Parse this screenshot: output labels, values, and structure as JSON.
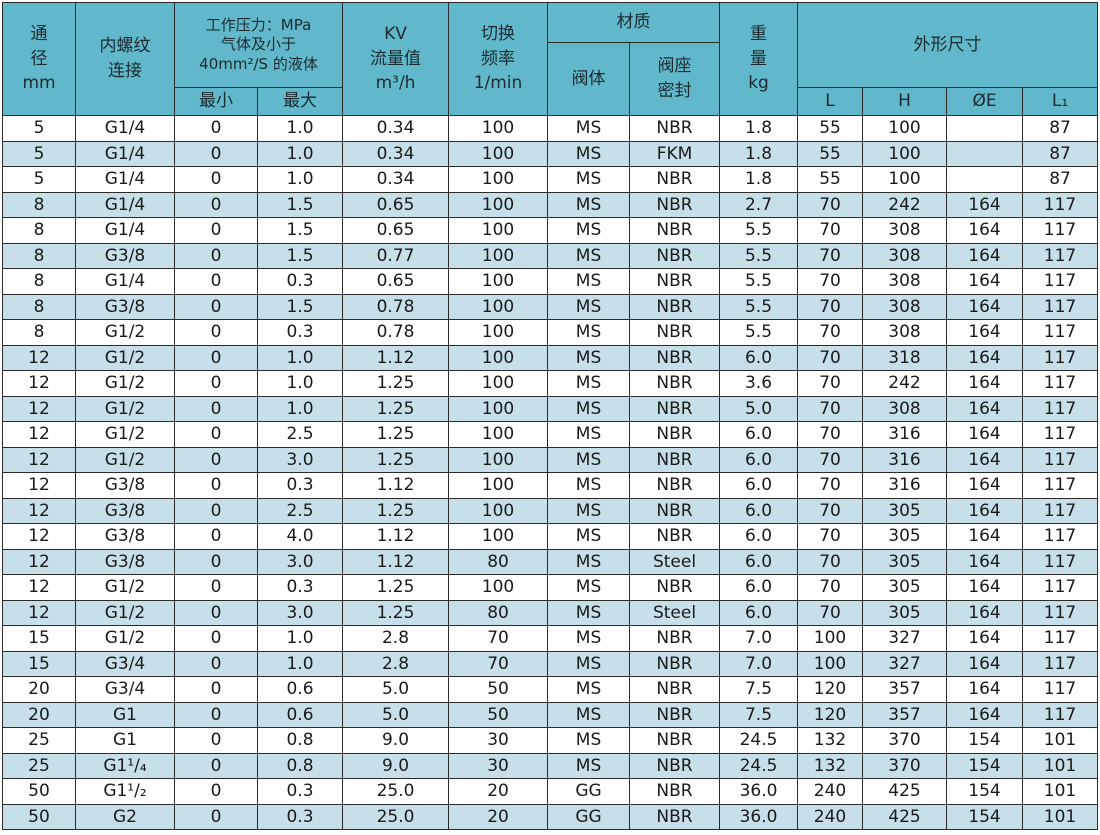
{
  "header": {
    "diameter": [
      "通",
      "径",
      "mm"
    ],
    "thread": [
      "内螺纹",
      "连接"
    ],
    "pressure": [
      "工作压力：MPa",
      "气体及小于",
      "40mm²/S 的液体"
    ],
    "pressure_min": "最小",
    "pressure_max": "最大",
    "kv": [
      "KV",
      "流量值",
      "m³/h"
    ],
    "frequency": [
      "切换",
      "频率",
      "1/min"
    ],
    "material": "材质",
    "body": "阀体",
    "seal": [
      "阀座",
      "密封"
    ],
    "weight": [
      "重",
      "量",
      "kg"
    ],
    "dimensions": "外形尺寸",
    "dim_L": "L",
    "dim_H": "H",
    "dim_E": "ØE",
    "dim_L1": "L₁"
  },
  "rows": [
    [
      "5",
      "G1/4",
      "0",
      "1.0",
      "0.34",
      "100",
      "MS",
      "NBR",
      "1.8",
      "55",
      "100",
      null,
      "87"
    ],
    [
      "5",
      "G1/4",
      "0",
      "1.0",
      "0.34",
      "100",
      "MS",
      "FKM",
      "1.8",
      "55",
      "100",
      null,
      "87"
    ],
    [
      "5",
      "G1/4",
      "0",
      "1.0",
      "0.34",
      "100",
      "MS",
      "NBR",
      "1.8",
      "55",
      "100",
      null,
      "87"
    ],
    [
      "8",
      "G1/4",
      "0",
      "1.5",
      "0.65",
      "100",
      "MS",
      "NBR",
      "2.7",
      "70",
      "242",
      "164",
      "117"
    ],
    [
      "8",
      "G1/4",
      "0",
      "1.5",
      "0.65",
      "100",
      "MS",
      "NBR",
      "5.5",
      "70",
      "308",
      "164",
      "117"
    ],
    [
      "8",
      "G3/8",
      "0",
      "1.5",
      "0.77",
      "100",
      "MS",
      "NBR",
      "5.5",
      "70",
      "308",
      "164",
      "117"
    ],
    [
      "8",
      "G1/4",
      "0",
      "0.3",
      "0.65",
      "100",
      "MS",
      "NBR",
      "5.5",
      "70",
      "308",
      "164",
      "117"
    ],
    [
      "8",
      "G3/8",
      "0",
      "1.5",
      "0.78",
      "100",
      "MS",
      "NBR",
      "5.5",
      "70",
      "308",
      "164",
      "117"
    ],
    [
      "8",
      "G1/2",
      "0",
      "0.3",
      "0.78",
      "100",
      "MS",
      "NBR",
      "5.5",
      "70",
      "308",
      "164",
      "117"
    ],
    [
      "12",
      "G1/2",
      "0",
      "1.0",
      "1.12",
      "100",
      "MS",
      "NBR",
      "6.0",
      "70",
      "318",
      "164",
      "117"
    ],
    [
      "12",
      "G1/2",
      "0",
      "1.0",
      "1.25",
      "100",
      "MS",
      "NBR",
      "3.6",
      "70",
      "242",
      "164",
      "117"
    ],
    [
      "12",
      "G1/2",
      "0",
      "1.0",
      "1.25",
      "100",
      "MS",
      "NBR",
      "5.0",
      "70",
      "308",
      "164",
      "117"
    ],
    [
      "12",
      "G1/2",
      "0",
      "2.5",
      "1.25",
      "100",
      "MS",
      "NBR",
      "6.0",
      "70",
      "316",
      "164",
      "117"
    ],
    [
      "12",
      "G1/2",
      "0",
      "3.0",
      "1.25",
      "100",
      "MS",
      "NBR",
      "6.0",
      "70",
      "316",
      "164",
      "117"
    ],
    [
      "12",
      "G3/8",
      "0",
      "0.3",
      "1.12",
      "100",
      "MS",
      "NBR",
      "6.0",
      "70",
      "316",
      "164",
      "117"
    ],
    [
      "12",
      "G3/8",
      "0",
      "2.5",
      "1.25",
      "100",
      "MS",
      "NBR",
      "6.0",
      "70",
      "305",
      "164",
      "117"
    ],
    [
      "12",
      "G3/8",
      "0",
      "4.0",
      "1.12",
      "100",
      "MS",
      "NBR",
      "6.0",
      "70",
      "305",
      "164",
      "117"
    ],
    [
      "12",
      "G3/8",
      "0",
      "3.0",
      "1.12",
      "80",
      "MS",
      "Steel",
      "6.0",
      "70",
      "305",
      "164",
      "117"
    ],
    [
      "12",
      "G1/2",
      "0",
      "0.3",
      "1.25",
      "100",
      "MS",
      "NBR",
      "6.0",
      "70",
      "305",
      "164",
      "117"
    ],
    [
      "12",
      "G1/2",
      "0",
      "3.0",
      "1.25",
      "80",
      "MS",
      "Steel",
      "6.0",
      "70",
      "305",
      "164",
      "117"
    ],
    [
      "15",
      "G1/2",
      "0",
      "1.0",
      "2.8",
      "70",
      "MS",
      "NBR",
      "7.0",
      "100",
      "327",
      "164",
      "117"
    ],
    [
      "15",
      "G3/4",
      "0",
      "1.0",
      "2.8",
      "70",
      "MS",
      "NBR",
      "7.0",
      "100",
      "327",
      "164",
      "117"
    ],
    [
      "20",
      "G3/4",
      "0",
      "0.6",
      "5.0",
      "50",
      "MS",
      "NBR",
      "7.5",
      "120",
      "357",
      "164",
      "117"
    ],
    [
      "20",
      "G1",
      "0",
      "0.6",
      "5.0",
      "50",
      "MS",
      "NBR",
      "7.5",
      "120",
      "357",
      "164",
      "117"
    ],
    [
      "25",
      "G1",
      "0",
      "0.8",
      "9.0",
      "30",
      "MS",
      "NBR",
      "24.5",
      "132",
      "370",
      "154",
      "101"
    ],
    [
      "25",
      "G1¹/₄",
      "0",
      "0.8",
      "9.0",
      "30",
      "MS",
      "NBR",
      "24.5",
      "132",
      "370",
      "154",
      "101"
    ],
    [
      "50",
      "G1¹/₂",
      "0",
      "0.3",
      "25.0",
      "20",
      "GG",
      "NBR",
      "36.0",
      "240",
      "425",
      "154",
      "101"
    ],
    [
      "50",
      "G2",
      "0",
      "0.3",
      "25.0",
      "20",
      "GG",
      "NBR",
      "36.0",
      "240",
      "425",
      "154",
      "101"
    ]
  ]
}
